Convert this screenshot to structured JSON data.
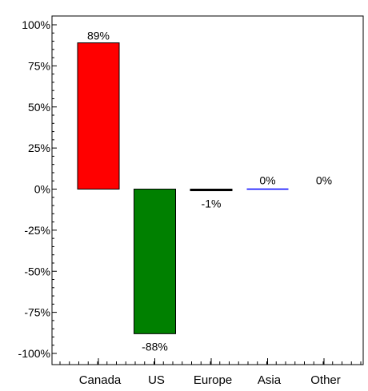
{
  "chart_data": {
    "type": "bar",
    "title": "",
    "xlabel": "",
    "ylabel": "",
    "categories": [
      "Canada",
      "US",
      "Europe",
      "Asia",
      "Other"
    ],
    "values": [
      89,
      -88,
      -1,
      0,
      0
    ],
    "value_labels": [
      "89%",
      "-88%",
      "-1%",
      "0%",
      "0%"
    ],
    "colors": [
      "#ff0000",
      "#008000",
      "#000000",
      "#0000ff",
      "#000000"
    ],
    "ylim": [
      -100,
      100
    ],
    "yticks": [
      100,
      75,
      50,
      25,
      0,
      -25,
      -50,
      -75,
      -100
    ],
    "ytick_labels": [
      "100%",
      "75%",
      "50%",
      "25%",
      "0%",
      "-25%",
      "-50%",
      "-75%",
      "-100%"
    ],
    "grid": false,
    "legend": "none"
  }
}
